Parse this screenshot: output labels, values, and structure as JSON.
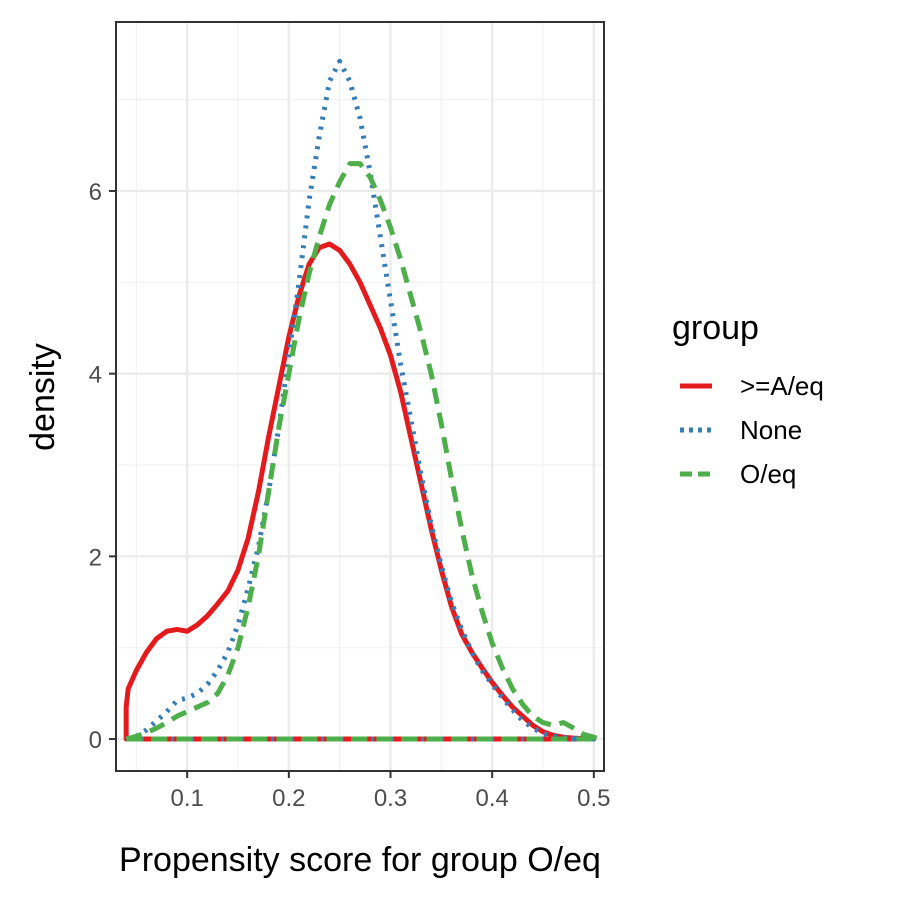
{
  "chart_data": {
    "type": "area",
    "xlabel": "Propensity score for group O/eq",
    "ylabel": "density",
    "xlim": [
      0.03,
      0.51
    ],
    "ylim": [
      -0.35,
      7.85
    ],
    "x_ticks": [
      0.1,
      0.2,
      0.3,
      0.4,
      0.5
    ],
    "y_ticks": [
      0,
      2,
      4,
      6
    ],
    "x_tick_labels": [
      "0.1",
      "0.2",
      "0.3",
      "0.4",
      "0.5"
    ],
    "y_tick_labels": [
      "0",
      "2",
      "4",
      "6"
    ],
    "grid": true,
    "legend_placement": "right",
    "legend_title": "group",
    "series": [
      {
        "name": ">=A/eq",
        "color": "#E41A1C",
        "linestyle": "solid",
        "x": [
          0.04,
          0.042,
          0.05,
          0.06,
          0.07,
          0.08,
          0.09,
          0.1,
          0.11,
          0.12,
          0.13,
          0.14,
          0.15,
          0.16,
          0.17,
          0.18,
          0.19,
          0.2,
          0.21,
          0.22,
          0.23,
          0.24,
          0.25,
          0.26,
          0.27,
          0.28,
          0.29,
          0.3,
          0.31,
          0.32,
          0.33,
          0.34,
          0.35,
          0.36,
          0.37,
          0.38,
          0.39,
          0.4,
          0.41,
          0.42,
          0.43,
          0.44,
          0.45,
          0.46,
          0.47,
          0.48,
          0.49,
          0.5
        ],
        "y": [
          0.35,
          0.55,
          0.75,
          0.95,
          1.1,
          1.18,
          1.2,
          1.18,
          1.25,
          1.35,
          1.48,
          1.62,
          1.85,
          2.2,
          2.7,
          3.3,
          3.85,
          4.4,
          4.85,
          5.2,
          5.38,
          5.42,
          5.35,
          5.2,
          5.0,
          4.75,
          4.5,
          4.2,
          3.8,
          3.3,
          2.8,
          2.3,
          1.85,
          1.45,
          1.15,
          0.95,
          0.78,
          0.62,
          0.48,
          0.35,
          0.25,
          0.15,
          0.08,
          0.04,
          0.02,
          0.01,
          0.005,
          0.0
        ]
      },
      {
        "name": "None",
        "color": "#377EB8",
        "linestyle": "dotted",
        "x": [
          0.04,
          0.05,
          0.06,
          0.07,
          0.08,
          0.09,
          0.1,
          0.11,
          0.12,
          0.13,
          0.14,
          0.15,
          0.16,
          0.17,
          0.18,
          0.19,
          0.2,
          0.21,
          0.22,
          0.23,
          0.24,
          0.25,
          0.26,
          0.27,
          0.28,
          0.29,
          0.3,
          0.31,
          0.32,
          0.33,
          0.34,
          0.35,
          0.36,
          0.37,
          0.38,
          0.39,
          0.4,
          0.41,
          0.42,
          0.43,
          0.44,
          0.45,
          0.46,
          0.47,
          0.48,
          0.49,
          0.5
        ],
        "y": [
          0.0,
          0.03,
          0.1,
          0.2,
          0.3,
          0.42,
          0.45,
          0.5,
          0.6,
          0.75,
          0.95,
          1.25,
          1.65,
          2.1,
          2.7,
          3.4,
          4.2,
          5.0,
          5.9,
          6.6,
          7.2,
          7.42,
          7.2,
          6.8,
          6.2,
          5.5,
          4.8,
          4.1,
          3.5,
          2.9,
          2.35,
          1.9,
          1.5,
          1.2,
          0.95,
          0.75,
          0.6,
          0.45,
          0.32,
          0.2,
          0.12,
          0.06,
          0.03,
          0.015,
          0.008,
          0.004,
          0.0
        ]
      },
      {
        "name": "O/eq",
        "color": "#4DAF4A",
        "linestyle": "dashed",
        "x": [
          0.04,
          0.05,
          0.06,
          0.07,
          0.08,
          0.09,
          0.1,
          0.11,
          0.12,
          0.13,
          0.14,
          0.15,
          0.16,
          0.17,
          0.18,
          0.19,
          0.2,
          0.21,
          0.22,
          0.23,
          0.24,
          0.25,
          0.26,
          0.27,
          0.28,
          0.29,
          0.3,
          0.31,
          0.32,
          0.33,
          0.34,
          0.35,
          0.36,
          0.37,
          0.38,
          0.39,
          0.4,
          0.41,
          0.42,
          0.43,
          0.44,
          0.45,
          0.46,
          0.47,
          0.48,
          0.49,
          0.5,
          0.505
        ],
        "y": [
          0.0,
          0.03,
          0.07,
          0.12,
          0.18,
          0.25,
          0.3,
          0.35,
          0.4,
          0.5,
          0.7,
          1.0,
          1.45,
          2.0,
          2.7,
          3.4,
          4.0,
          4.6,
          5.1,
          5.5,
          5.85,
          6.1,
          6.3,
          6.3,
          6.15,
          5.9,
          5.6,
          5.25,
          4.85,
          4.45,
          4.0,
          3.45,
          2.85,
          2.3,
          1.8,
          1.4,
          1.05,
          0.78,
          0.55,
          0.38,
          0.25,
          0.18,
          0.15,
          0.18,
          0.12,
          0.05,
          0.02,
          0.0
        ]
      }
    ]
  }
}
